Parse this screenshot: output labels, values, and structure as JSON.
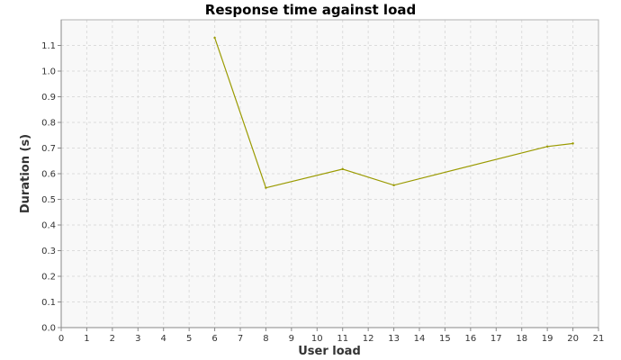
{
  "chart_data": {
    "type": "line",
    "title": "Response time against load",
    "xlabel": "User load",
    "ylabel": "Duration (s)",
    "xlim": [
      0,
      21
    ],
    "ylim": [
      0,
      1.2
    ],
    "x_ticks": [
      0,
      1,
      2,
      3,
      4,
      5,
      6,
      7,
      8,
      9,
      10,
      11,
      12,
      13,
      14,
      15,
      16,
      17,
      18,
      19,
      20,
      21
    ],
    "y_ticks": [
      0.0,
      0.1,
      0.2,
      0.3,
      0.4,
      0.5,
      0.6,
      0.7,
      0.8,
      0.9,
      1.0,
      1.1
    ],
    "grid": true,
    "series": [
      {
        "color": "#9a9a00",
        "x": [
          6,
          8,
          11,
          13,
          19,
          20
        ],
        "y": [
          1.13,
          0.545,
          0.618,
          0.555,
          0.706,
          0.718
        ]
      }
    ]
  }
}
